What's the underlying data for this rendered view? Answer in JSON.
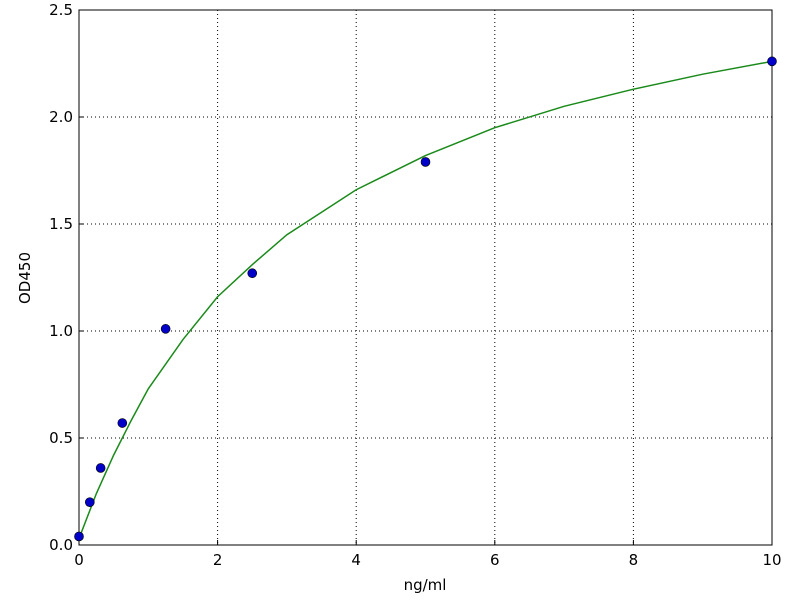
{
  "chart_data": {
    "type": "scatter",
    "x_label": "ng/ml",
    "y_label": "OD450",
    "xlim": [
      0,
      10
    ],
    "ylim": [
      0,
      2.5
    ],
    "xticks": [
      0,
      2,
      4,
      6,
      8,
      10
    ],
    "yticks": [
      {
        "value": 0,
        "label": "0.0"
      },
      0.5,
      {
        "value": 1,
        "label": "1.0"
      },
      1.5,
      {
        "value": 2,
        "label": "2.0"
      },
      2.5
    ],
    "grid": true,
    "series": [
      {
        "type": "line",
        "color": "#1a8a1a",
        "x": [
          0,
          0.25,
          0.5,
          0.75,
          1,
          1.5,
          2,
          2.5,
          3,
          4,
          5,
          6,
          7,
          8,
          9,
          10
        ],
        "values": [
          0.03,
          0.24,
          0.42,
          0.58,
          0.73,
          0.96,
          1.16,
          1.31,
          1.45,
          1.66,
          1.82,
          1.95,
          2.05,
          2.13,
          2.2,
          2.26
        ]
      },
      {
        "type": "scatter",
        "color": "#0000c8",
        "x": [
          0,
          0.156,
          0.3125,
          0.625,
          1.25,
          2.5,
          5,
          10
        ],
        "values": [
          0.04,
          0.2,
          0.36,
          0.57,
          1.01,
          1.27,
          1.79,
          2.26
        ]
      }
    ]
  }
}
